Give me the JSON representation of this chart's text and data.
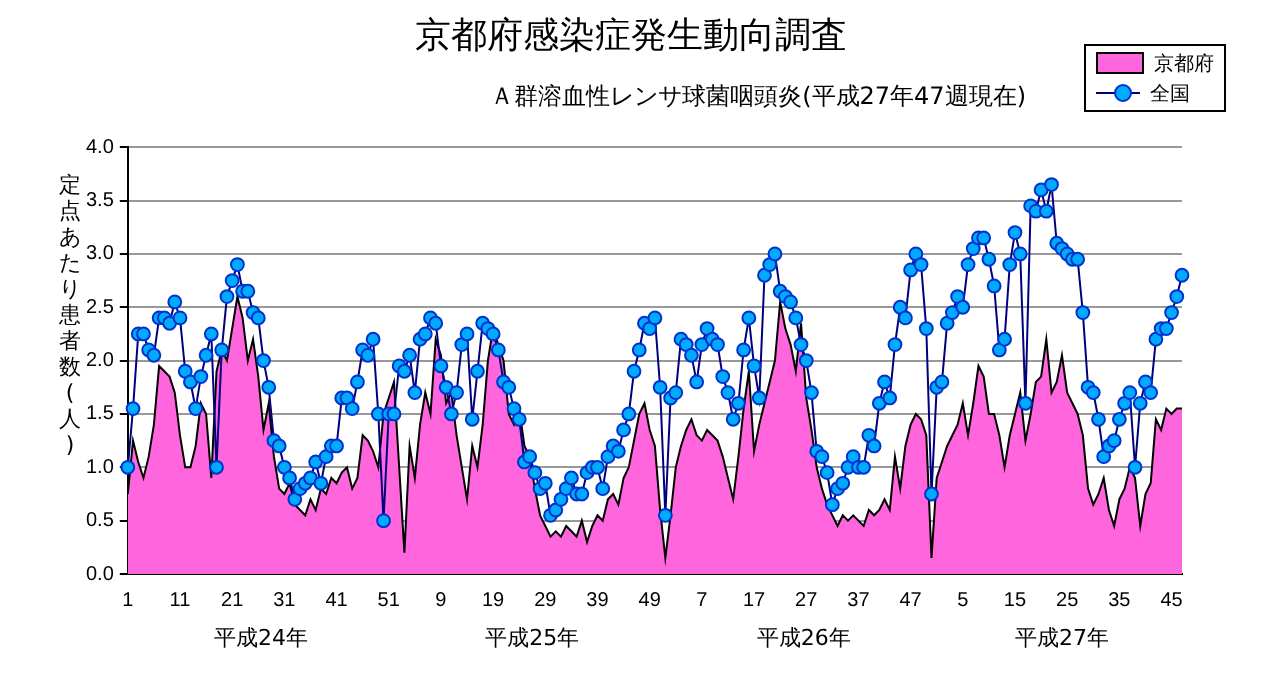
{
  "chart_data": {
    "type": "line",
    "title": "京都府感染症発生動向調査",
    "subtitle": "Ａ群溶血性レンサ球菌咽頭炎(平成27年47週現在)",
    "ylabel": "定点あたり患者数(人)",
    "annotations": [
      "平成24年",
      "平成25年",
      "平成26年",
      "平成27年"
    ],
    "categories": [
      "1",
      null,
      null,
      null,
      null,
      null,
      null,
      null,
      null,
      null,
      "11",
      null,
      null,
      null,
      null,
      null,
      null,
      null,
      null,
      null,
      "21",
      null,
      null,
      null,
      null,
      null,
      null,
      null,
      null,
      null,
      "31",
      null,
      null,
      null,
      null,
      null,
      null,
      null,
      null,
      null,
      "41",
      null,
      null,
      null,
      null,
      null,
      null,
      null,
      null,
      null,
      "51",
      null,
      null,
      null,
      null,
      null,
      null,
      null,
      null,
      null,
      "9",
      null,
      null,
      null,
      null,
      null,
      null,
      null,
      null,
      null,
      "19",
      null,
      null,
      null,
      null,
      null,
      null,
      null,
      null,
      null,
      "29",
      null,
      null,
      null,
      null,
      null,
      null,
      null,
      null,
      null,
      "39",
      null,
      null,
      null,
      null,
      null,
      null,
      null,
      null,
      null,
      "49",
      null,
      null,
      null,
      null,
      null,
      null,
      null,
      null,
      null,
      "7",
      null,
      null,
      null,
      null,
      null,
      null,
      null,
      null,
      null,
      "17",
      null,
      null,
      null,
      null,
      null,
      null,
      null,
      null,
      null,
      "27",
      null,
      null,
      null,
      null,
      null,
      null,
      null,
      null,
      null,
      "37",
      null,
      null,
      null,
      null,
      null,
      null,
      null,
      null,
      null,
      "47",
      null,
      null,
      null,
      null,
      null,
      null,
      null,
      null,
      null,
      "5",
      null,
      null,
      null,
      null,
      null,
      null,
      null,
      null,
      null,
      "15",
      null,
      null,
      null,
      null,
      null,
      null,
      null,
      null,
      null,
      "25",
      null,
      null,
      null,
      null,
      null,
      null,
      null,
      null,
      null,
      "35",
      null,
      null,
      null,
      null,
      null,
      null,
      null,
      null,
      null,
      "45",
      null,
      null
    ],
    "series": [
      {
        "name": "京都府",
        "type": "area",
        "color": "#ff66dd",
        "values": [
          0.75,
          1.25,
          1.05,
          0.9,
          1.1,
          1.4,
          1.95,
          1.9,
          1.85,
          1.7,
          1.3,
          1.0,
          1.0,
          1.2,
          1.6,
          1.5,
          0.9,
          1.9,
          2.1,
          2.0,
          2.3,
          2.6,
          2.4,
          2.0,
          2.2,
          1.85,
          1.35,
          1.6,
          1.1,
          0.8,
          0.75,
          0.85,
          0.65,
          0.6,
          0.55,
          0.7,
          0.6,
          0.8,
          0.75,
          0.9,
          0.85,
          0.95,
          1.0,
          0.8,
          0.9,
          1.3,
          1.25,
          1.15,
          1.0,
          1.5,
          1.65,
          1.8,
          1.0,
          0.2,
          1.2,
          0.9,
          1.4,
          1.7,
          1.5,
          2.2,
          2.05,
          1.6,
          1.7,
          1.3,
          1.0,
          0.7,
          1.2,
          1.0,
          1.4,
          2.0,
          2.3,
          2.15,
          2.0,
          1.5,
          1.4,
          1.55,
          1.2,
          1.1,
          0.8,
          0.55,
          0.45,
          0.35,
          0.4,
          0.35,
          0.45,
          0.4,
          0.35,
          0.5,
          0.3,
          0.45,
          0.55,
          0.5,
          0.7,
          0.75,
          0.65,
          0.9,
          1.0,
          1.25,
          1.5,
          1.6,
          1.35,
          1.2,
          0.6,
          0.15,
          0.55,
          1.0,
          1.2,
          1.35,
          1.45,
          1.3,
          1.25,
          1.35,
          1.3,
          1.25,
          1.1,
          0.9,
          0.7,
          1.1,
          1.55,
          1.9,
          1.15,
          1.4,
          1.6,
          1.8,
          2.0,
          2.55,
          2.3,
          2.15,
          1.9,
          2.35,
          1.65,
          1.35,
          1.0,
          0.8,
          0.65,
          0.55,
          0.45,
          0.55,
          0.5,
          0.55,
          0.5,
          0.45,
          0.6,
          0.55,
          0.6,
          0.7,
          0.6,
          1.1,
          0.8,
          1.2,
          1.4,
          1.5,
          1.45,
          1.3,
          0.15,
          0.9,
          1.05,
          1.2,
          1.3,
          1.4,
          1.6,
          1.3,
          1.6,
          1.95,
          1.85,
          1.5,
          1.5,
          1.3,
          1.0,
          1.3,
          1.5,
          1.7,
          1.25,
          1.5,
          1.8,
          1.85,
          2.2,
          1.7,
          1.8,
          2.05,
          1.7,
          1.6,
          1.5,
          1.3,
          0.8,
          0.65,
          0.75,
          0.9,
          0.6,
          0.45,
          0.7,
          0.8,
          1.0,
          0.9,
          0.45,
          0.75,
          0.85,
          1.45,
          1.35,
          1.55,
          1.5,
          1.55,
          1.55
        ]
      },
      {
        "name": "全国",
        "type": "line",
        "color": "#00aaff",
        "marker": "circle",
        "values": [
          1.0,
          1.55,
          2.25,
          2.25,
          2.1,
          2.05,
          2.4,
          2.4,
          2.35,
          2.55,
          2.4,
          1.9,
          1.8,
          1.55,
          1.85,
          2.05,
          2.25,
          1.0,
          2.1,
          2.6,
          2.75,
          2.9,
          2.65,
          2.65,
          2.45,
          2.4,
          2.0,
          1.75,
          1.25,
          1.2,
          1.0,
          0.9,
          0.7,
          0.8,
          0.85,
          0.9,
          1.05,
          0.85,
          1.1,
          1.2,
          1.2,
          1.65,
          1.65,
          1.55,
          1.8,
          2.1,
          2.05,
          2.2,
          1.5,
          0.5,
          1.5,
          1.5,
          1.95,
          1.9,
          2.05,
          1.7,
          2.2,
          2.25,
          2.4,
          2.35,
          1.95,
          1.75,
          1.5,
          1.7,
          2.15,
          2.25,
          1.45,
          1.9,
          2.35,
          2.3,
          2.25,
          2.1,
          1.8,
          1.75,
          1.55,
          1.45,
          1.05,
          1.1,
          0.95,
          0.8,
          0.85,
          0.55,
          0.6,
          0.7,
          0.8,
          0.9,
          0.75,
          0.75,
          0.95,
          1.0,
          1.0,
          0.8,
          1.1,
          1.2,
          1.15,
          1.35,
          1.5,
          1.9,
          2.1,
          2.35,
          2.3,
          2.4,
          1.75,
          0.55,
          1.65,
          1.7,
          2.2,
          2.15,
          2.05,
          1.8,
          2.15,
          2.3,
          2.2,
          2.15,
          1.85,
          1.7,
          1.45,
          1.6,
          2.1,
          2.4,
          1.95,
          1.65,
          2.8,
          2.9,
          3.0,
          2.65,
          2.6,
          2.55,
          2.4,
          2.15,
          2.0,
          1.7,
          1.15,
          1.1,
          0.95,
          0.65,
          0.8,
          0.85,
          1.0,
          1.1,
          1.0,
          1.0,
          1.3,
          1.2,
          1.6,
          1.8,
          1.65,
          2.15,
          2.5,
          2.4,
          2.85,
          3.0,
          2.9,
          2.3,
          0.75,
          1.75,
          1.8,
          2.35,
          2.45,
          2.6,
          2.5,
          2.9,
          3.05,
          3.15,
          3.15,
          2.95,
          2.7,
          2.1,
          2.2,
          2.9,
          3.2,
          3.0,
          1.6,
          3.45,
          3.4,
          3.6,
          3.4,
          3.65,
          3.1,
          3.05,
          3.0,
          2.95,
          2.95,
          2.45,
          1.75,
          1.7,
          1.45,
          1.1,
          1.2,
          1.25,
          1.45,
          1.6,
          1.7,
          1.0,
          1.6,
          1.8,
          1.7,
          2.2,
          2.3,
          2.3,
          2.45,
          2.6,
          2.8
        ]
      }
    ],
    "ylim": [
      0,
      4
    ],
    "yticks": [
      {
        "value": 0,
        "label": "0.0"
      },
      0.5,
      {
        "value": 1,
        "label": "1.0"
      },
      1.5,
      {
        "value": 2,
        "label": "2.0"
      },
      2.5,
      {
        "value": 3,
        "label": "3.0"
      },
      3.5,
      {
        "value": 4,
        "label": "4.0"
      }
    ],
    "grid": "y",
    "legend": "top right"
  }
}
